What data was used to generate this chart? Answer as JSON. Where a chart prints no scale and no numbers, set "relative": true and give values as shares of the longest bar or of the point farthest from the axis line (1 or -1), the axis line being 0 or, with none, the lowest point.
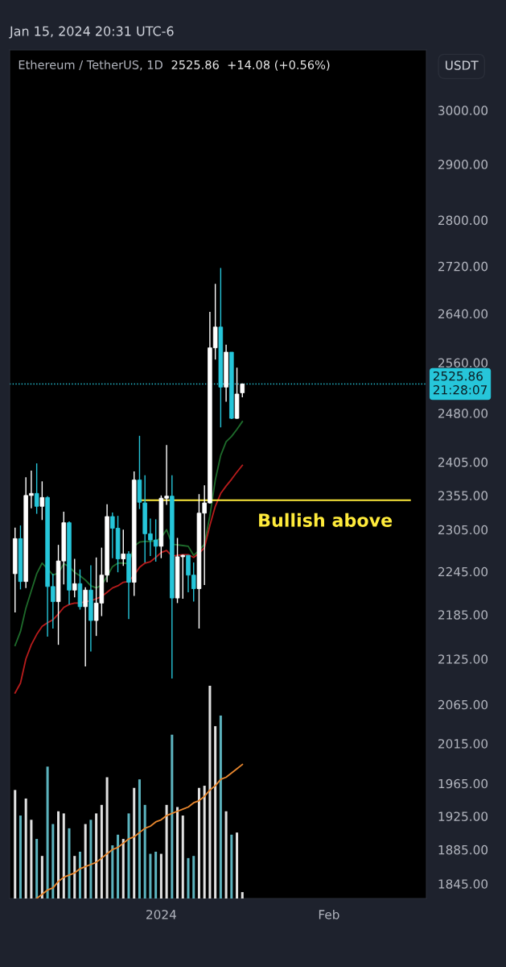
{
  "chart_data": [
    {
      "type": "candlestick",
      "title": "Ethereum / TetherUS, 1D",
      "subtitle": "2525.86  +14.08 (+0.56%)",
      "ylabel": "USDT",
      "x": [
        "2023-12-05",
        "2023-12-06",
        "2023-12-07",
        "2023-12-08",
        "2023-12-09",
        "2023-12-10",
        "2023-12-11",
        "2023-12-12",
        "2023-12-13",
        "2023-12-14",
        "2023-12-15",
        "2023-12-16",
        "2023-12-17",
        "2023-12-18",
        "2023-12-19",
        "2023-12-20",
        "2023-12-21",
        "2023-12-22",
        "2023-12-23",
        "2023-12-24",
        "2023-12-25",
        "2023-12-26",
        "2023-12-27",
        "2023-12-28",
        "2023-12-29",
        "2023-12-30",
        "2023-12-31",
        "2024-01-01",
        "2024-01-02",
        "2024-01-03",
        "2024-01-04",
        "2024-01-05",
        "2024-01-06",
        "2024-01-07",
        "2024-01-08",
        "2024-01-09",
        "2024-01-10",
        "2024-01-11",
        "2024-01-12",
        "2024-01-13",
        "2024-01-14",
        "2024-01-15",
        "2024-01-16"
      ],
      "ohlc": [
        [
          2242,
          2308,
          2188,
          2292
        ],
        [
          2292,
          2311,
          2220,
          2231
        ],
        [
          2231,
          2382,
          2222,
          2355
        ],
        [
          2355,
          2392,
          2336,
          2358
        ],
        [
          2358,
          2403,
          2328,
          2339
        ],
        [
          2339,
          2376,
          2319,
          2352
        ],
        [
          2352,
          2354,
          2155,
          2224
        ],
        [
          2224,
          2242,
          2166,
          2203
        ],
        [
          2203,
          2283,
          2144,
          2260
        ],
        [
          2260,
          2331,
          2227,
          2315
        ],
        [
          2315,
          2317,
          2199,
          2219
        ],
        [
          2219,
          2263,
          2209,
          2228
        ],
        [
          2228,
          2248,
          2192,
          2196
        ],
        [
          2196,
          2223,
          2115,
          2219
        ],
        [
          2219,
          2254,
          2135,
          2177
        ],
        [
          2177,
          2265,
          2156,
          2201
        ],
        [
          2201,
          2279,
          2183,
          2240
        ],
        [
          2240,
          2342,
          2230,
          2324
        ],
        [
          2324,
          2330,
          2264,
          2307
        ],
        [
          2307,
          2325,
          2244,
          2263
        ],
        [
          2263,
          2305,
          2253,
          2270
        ],
        [
          2270,
          2274,
          2179,
          2230
        ],
        [
          2230,
          2391,
          2211,
          2378
        ],
        [
          2378,
          2445,
          2335,
          2345
        ],
        [
          2344,
          2385,
          2258,
          2299
        ],
        [
          2299,
          2321,
          2267,
          2290
        ],
        [
          2290,
          2320,
          2259,
          2281
        ],
        [
          2281,
          2355,
          2264,
          2351
        ],
        [
          2351,
          2431,
          2341,
          2354
        ],
        [
          2354,
          2385,
          2099,
          2208
        ],
        [
          2208,
          2293,
          2201,
          2266
        ],
        [
          2266,
          2269,
          2207,
          2268
        ],
        [
          2268,
          2268,
          2216,
          2240
        ],
        [
          2240,
          2258,
          2203,
          2221
        ],
        [
          2221,
          2357,
          2166,
          2329
        ],
        [
          2329,
          2370,
          2226,
          2344
        ],
        [
          2344,
          2643,
          2343,
          2584
        ],
        [
          2584,
          2690,
          2565,
          2618
        ],
        [
          2618,
          2717,
          2458,
          2521
        ],
        [
          2521,
          2589,
          2498,
          2577
        ],
        [
          2577,
          2577,
          2471,
          2472
        ],
        [
          2472,
          2552,
          2471,
          2510
        ],
        [
          2512,
          2527,
          2505,
          2525.86
        ]
      ],
      "colors": [
        "#ffffff",
        "#26c6da",
        "#ffffff",
        "#ffffff",
        "#26c6da",
        "#ffffff",
        "#26c6da",
        "#26c6da",
        "#ffffff",
        "#ffffff",
        "#26c6da",
        "#ffffff",
        "#26c6da",
        "#ffffff",
        "#26c6da",
        "#ffffff",
        "#ffffff",
        "#ffffff",
        "#26c6da",
        "#26c6da",
        "#ffffff",
        "#26c6da",
        "#ffffff",
        "#26c6da",
        "#26c6da",
        "#26c6da",
        "#26c6da",
        "#ffffff",
        "#ffffff",
        "#26c6da",
        "#ffffff",
        "#ffffff",
        "#26c6da",
        "#26c6da",
        "#ffffff",
        "#ffffff",
        "#ffffff",
        "#ffffff",
        "#26c6da",
        "#ffffff",
        "#26c6da",
        "#ffffff",
        "#ffffff"
      ],
      "series": [
        {
          "type": "line",
          "color": "#1e6b2b",
          "values": [
            2143,
            2162,
            2194,
            2218,
            2242,
            2257,
            2249,
            2240,
            2243,
            2256,
            2252,
            2244,
            2239,
            2233,
            2225,
            2222,
            2226,
            2238,
            2252,
            2257,
            2257,
            2256,
            2281,
            2287,
            2288,
            2288,
            2289,
            2293,
            2305,
            2284,
            2283,
            2282,
            2281,
            2268,
            2275,
            2284,
            2325,
            2378,
            2415,
            2436,
            2444,
            2455,
            2467
          ]
        },
        {
          "type": "line",
          "color": "#b71c1c",
          "values": [
            2080,
            2093,
            2125,
            2144,
            2158,
            2169,
            2174,
            2178,
            2186,
            2195,
            2199,
            2201,
            2201,
            2203,
            2204,
            2207,
            2210,
            2216,
            2222,
            2225,
            2230,
            2231,
            2240,
            2251,
            2257,
            2259,
            2265,
            2272,
            2275,
            2267,
            2268,
            2269,
            2269,
            2265,
            2271,
            2279,
            2311,
            2339,
            2358,
            2369,
            2379,
            2390,
            2400
          ]
        },
        {
          "type": "line",
          "color": "#ffeb3b",
          "x": [
            "2023-12-28",
            "2024-02-16"
          ],
          "values": [
            2348,
            2348
          ]
        }
      ],
      "ref_lines": [
        {
          "axis": "y",
          "value": 2525.86,
          "label": "2525.86\n21:28:07",
          "color": "#26c6da",
          "line_style": "dotted"
        }
      ],
      "annotations": [
        "Jan 15, 2024 20:31 UTC-6",
        "Bullish above"
      ],
      "log": true,
      "xlim": [
        "2023-12-04",
        "2024-02-19"
      ],
      "ylim": [
        1828,
        3116
      ],
      "xticks": [
        {
          "value": "2024-01-01",
          "label": "2024"
        },
        {
          "value": "2024-02-01",
          "label": "Feb"
        }
      ],
      "yticks": [
        {
          "value": 1845,
          "label": "1845.00"
        },
        {
          "value": 1885,
          "label": "1885.00"
        },
        {
          "value": 1925,
          "label": "1925.00"
        },
        {
          "value": 1965,
          "label": "1965.00"
        },
        {
          "value": 2015,
          "label": "2015.00"
        },
        {
          "value": 2065,
          "label": "2065.00"
        },
        {
          "value": 2125,
          "label": "2125.00"
        },
        {
          "value": 2185,
          "label": "2185.00"
        },
        {
          "value": 2245,
          "label": "2245.00"
        },
        {
          "value": 2305,
          "label": "2305.00"
        },
        {
          "value": 2355,
          "label": "2355.00"
        },
        {
          "value": 2405,
          "label": "2405.00"
        },
        {
          "value": 2480,
          "label": "2480.00"
        },
        {
          "value": 2560,
          "label": "2560.00"
        },
        {
          "value": 2640,
          "label": "2640.00"
        },
        {
          "value": 2720,
          "label": "2720.00"
        },
        {
          "value": 2800,
          "label": "2800.00"
        },
        {
          "value": 2900,
          "label": "2900.00"
        },
        {
          "value": 3000,
          "label": "3000.00"
        }
      ]
    },
    {
      "type": "bar",
      "relative": true,
      "tick_labels": false,
      "xlim": [
        "2023-12-04",
        "2024-02-19"
      ],
      "x": [
        "2023-12-05",
        "2023-12-06",
        "2023-12-07",
        "2023-12-08",
        "2023-12-09",
        "2023-12-10",
        "2023-12-11",
        "2023-12-12",
        "2023-12-13",
        "2023-12-14",
        "2023-12-15",
        "2023-12-16",
        "2023-12-17",
        "2023-12-18",
        "2023-12-19",
        "2023-12-20",
        "2023-12-21",
        "2023-12-22",
        "2023-12-23",
        "2023-12-24",
        "2023-12-25",
        "2023-12-26",
        "2023-12-27",
        "2023-12-28",
        "2023-12-29",
        "2023-12-30",
        "2023-12-31",
        "2024-01-01",
        "2024-01-02",
        "2024-01-03",
        "2024-01-04",
        "2024-01-05",
        "2024-01-06",
        "2024-01-07",
        "2024-01-08",
        "2024-01-09",
        "2024-01-10",
        "2024-01-11",
        "2024-01-12",
        "2024-01-13",
        "2024-01-14",
        "2024-01-15",
        "2024-01-16"
      ],
      "series": [
        {
          "type": "bar",
          "colors": [
            "#e0e0e0",
            "#5cb3be",
            "#e0e0e0",
            "#e0e0e0",
            "#5cb3be",
            "#e0e0e0",
            "#5cb3be",
            "#5cb3be",
            "#e0e0e0",
            "#e0e0e0",
            "#5cb3be",
            "#e0e0e0",
            "#5cb3be",
            "#e0e0e0",
            "#5cb3be",
            "#e0e0e0",
            "#e0e0e0",
            "#e0e0e0",
            "#5cb3be",
            "#5cb3be",
            "#e0e0e0",
            "#5cb3be",
            "#e0e0e0",
            "#5cb3be",
            "#5cb3be",
            "#5cb3be",
            "#5cb3be",
            "#e0e0e0",
            "#e0e0e0",
            "#5cb3be",
            "#e0e0e0",
            "#e0e0e0",
            "#5cb3be",
            "#5cb3be",
            "#e0e0e0",
            "#e0e0e0",
            "#e0e0e0",
            "#e0e0e0",
            "#5cb3be",
            "#e0e0e0",
            "#5cb3be",
            "#e0e0e0",
            "#e0e0e0"
          ],
          "values": [
            0.51,
            0.39,
            0.47,
            0.37,
            0.28,
            0.2,
            0.62,
            0.35,
            0.41,
            0.4,
            0.33,
            0.2,
            0.22,
            0.35,
            0.37,
            0.4,
            0.44,
            0.57,
            0.25,
            0.3,
            0.28,
            0.4,
            0.52,
            0.56,
            0.44,
            0.21,
            0.22,
            0.21,
            0.44,
            0.77,
            0.43,
            0.39,
            0.19,
            0.2,
            0.52,
            0.53,
            1,
            0.81,
            0.86,
            0.41,
            0.3,
            0.31,
            0.03
          ]
        },
        {
          "type": "line",
          "color": "#e8872e",
          "values": [
            null,
            null,
            null,
            null,
            0.0,
            0.02,
            0.04,
            0.05,
            0.08,
            0.1,
            0.11,
            0.12,
            0.14,
            0.15,
            0.16,
            0.17,
            0.19,
            0.21,
            0.23,
            0.24,
            0.26,
            0.28,
            0.29,
            0.31,
            0.33,
            0.34,
            0.36,
            0.37,
            0.39,
            0.4,
            0.41,
            0.42,
            0.43,
            0.45,
            0.46,
            0.48,
            0.51,
            0.53,
            0.56,
            0.57,
            0.59,
            0.61,
            0.63
          ]
        }
      ]
    }
  ]
}
